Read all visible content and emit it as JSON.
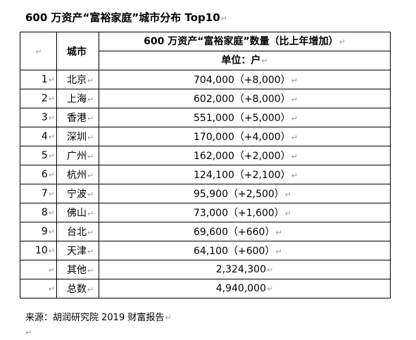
{
  "title": "600 万资产“富裕家庭”城市分布 Top10",
  "para_mark": "↵",
  "table": {
    "header_rank": "",
    "header_city": "城市",
    "header_value": "600 万资产“富裕家庭”数量（比上年增加）",
    "header_unit": "单位：户",
    "rows": [
      {
        "rank": "1",
        "city": "北京",
        "value": "704,000（+8,000）"
      },
      {
        "rank": "2",
        "city": "上海",
        "value": "602,000（+8,000）"
      },
      {
        "rank": "3",
        "city": "香港",
        "value": "551,000（+5,000）"
      },
      {
        "rank": "4",
        "city": "深圳",
        "value": "170,000（+4,000）"
      },
      {
        "rank": "5",
        "city": "广州",
        "value": "162,000（+2,000）"
      },
      {
        "rank": "6",
        "city": "杭州",
        "value": "124,100（+2,100）"
      },
      {
        "rank": "7",
        "city": "宁波",
        "value": "95,900（+2,500）"
      },
      {
        "rank": "8",
        "city": "佛山",
        "value": "73,000（+1,600）"
      },
      {
        "rank": "9",
        "city": "台北",
        "value": "69,600（+660）"
      },
      {
        "rank": "10",
        "city": "天津",
        "value": "64,100（+600）"
      }
    ],
    "other": {
      "rank": "",
      "city": "其他",
      "value": "2,324,300"
    },
    "total": {
      "rank": "",
      "city": "总数",
      "value": "4,940,000"
    }
  },
  "source": "来源：胡润研究院 2019 财富报告"
}
